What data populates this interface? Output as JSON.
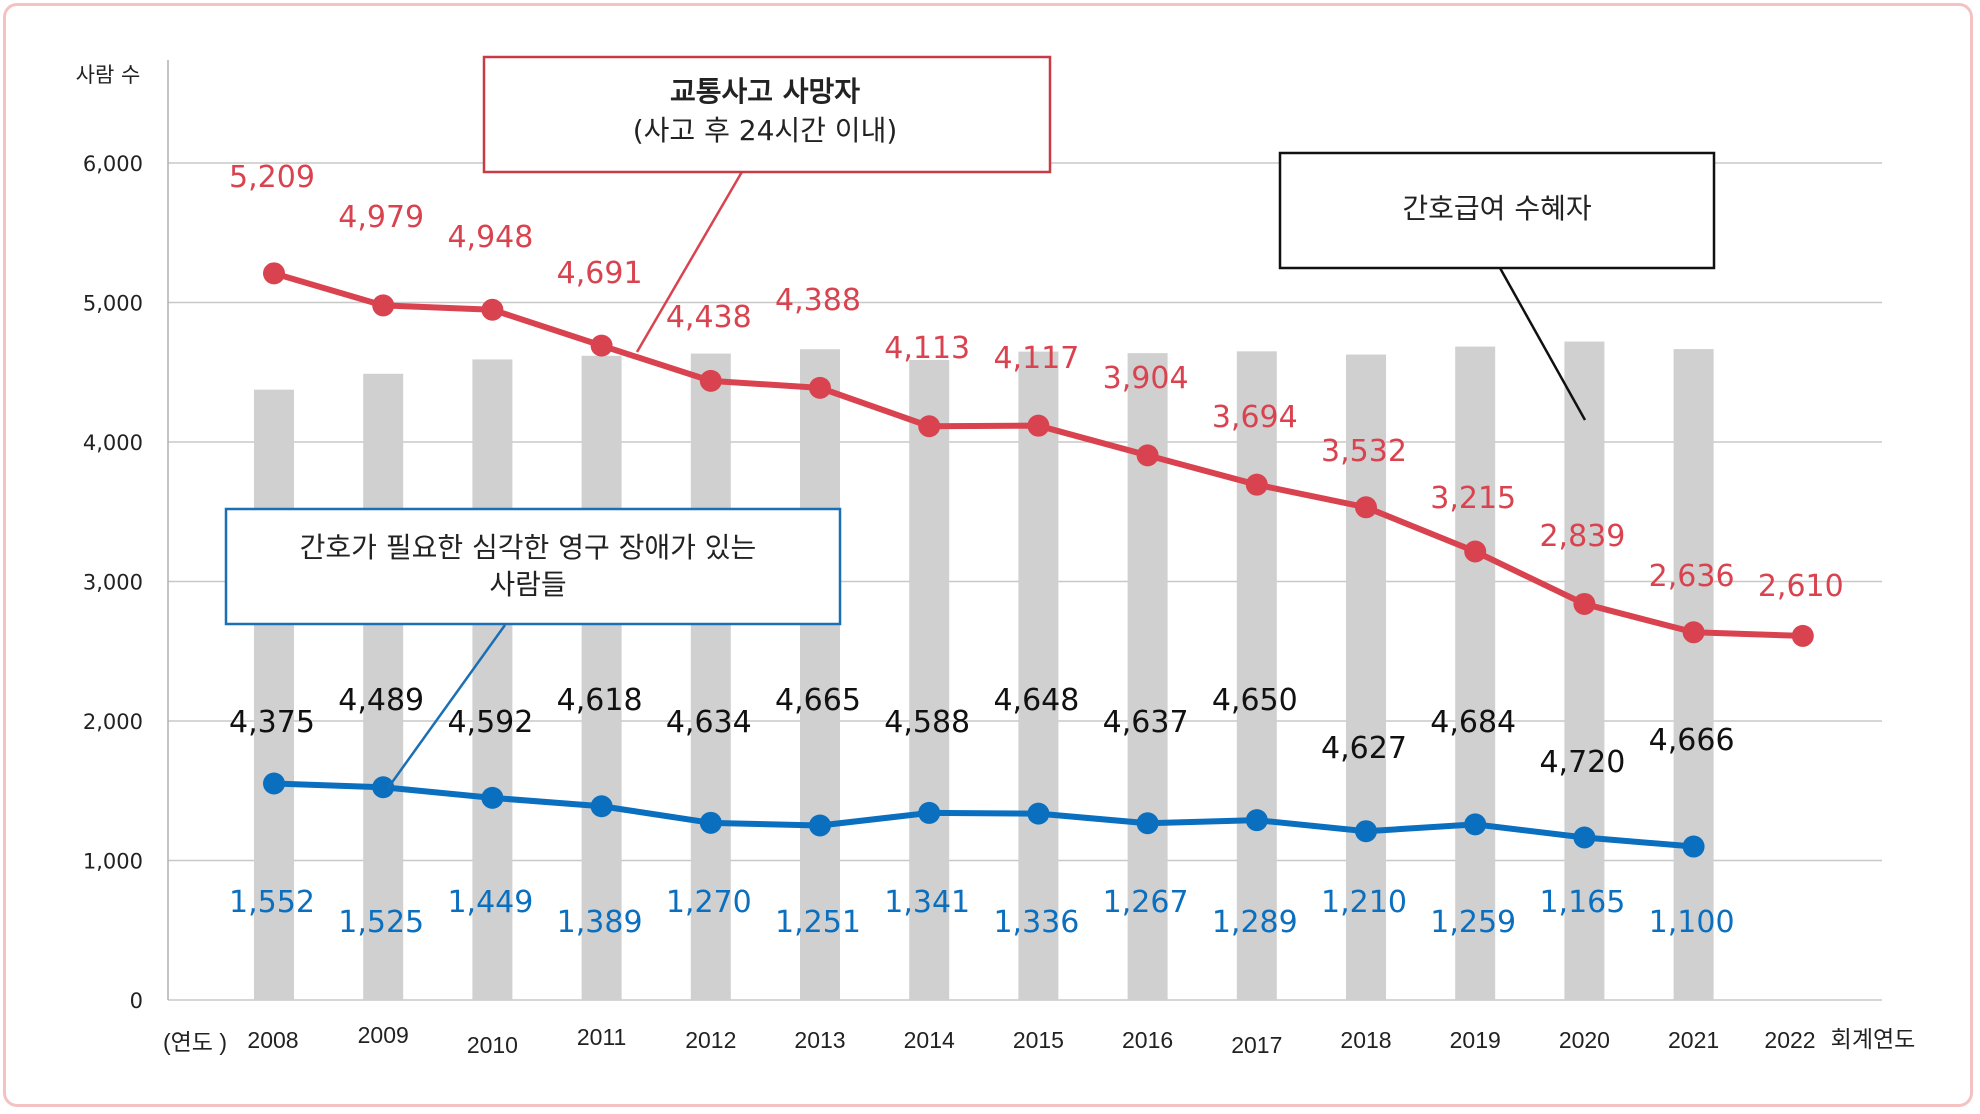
{
  "chart_data": {
    "type": "bar",
    "ylabel": "사람 수",
    "xlabel_prefix": "(연도 )",
    "xlabel_suffix": "회계연도",
    "ylim": [
      0,
      6000
    ],
    "yticks": [
      "0",
      "1,000",
      "2,000",
      "3,000",
      "4,000",
      "5,000",
      "6,000"
    ],
    "categories": [
      "2008",
      "2009",
      "2010",
      "2011",
      "2012",
      "2013",
      "2014",
      "2015",
      "2016",
      "2017",
      "2018",
      "2019",
      "2020",
      "2021",
      "2022"
    ],
    "series": [
      {
        "name": "간호급여 수혜자",
        "kind": "bar",
        "color": "#d0d0d0",
        "label_color": "#111111",
        "values": [
          4375,
          4489,
          4592,
          4618,
          4634,
          4665,
          4588,
          4648,
          4637,
          4650,
          4627,
          4684,
          4720,
          4666,
          null
        ],
        "labels": [
          "4,375",
          "4,489",
          "4,592",
          "4,618",
          "4,634",
          "4,665",
          "4,588",
          "4,648",
          "4,637",
          "4,650",
          "4,627",
          "4,684",
          "4,720",
          "4,666",
          ""
        ]
      },
      {
        "name": "교통사고 사망자",
        "kind": "line",
        "color": "#d9434f",
        "label_color": "#d9434f",
        "values": [
          5209,
          4979,
          4948,
          4691,
          4438,
          4388,
          4113,
          4117,
          3904,
          3694,
          3532,
          3215,
          2839,
          2636,
          2610
        ],
        "labels": [
          "5,209",
          "4,979",
          "4,948",
          "4,691",
          "4,438",
          "4,388",
          "4,113",
          "4,117",
          "3,904",
          "3,694",
          "3,532",
          "3,215",
          "2,839",
          "2,636",
          "2,610"
        ]
      },
      {
        "name": "간호가 필요한 심각한 영구 장애가 있는 사람들",
        "kind": "line",
        "color": "#0a6fbf",
        "label_color": "#0a6fbf",
        "values": [
          1552,
          1525,
          1449,
          1389,
          1270,
          1251,
          1341,
          1336,
          1267,
          1289,
          1210,
          1259,
          1165,
          1100,
          null
        ],
        "labels": [
          "1,552",
          "1,525",
          "1,449",
          "1,389",
          "1,270",
          "1,251",
          "1,341",
          "1,336",
          "1,267",
          "1,289",
          "1,210",
          "1,259",
          "1,165",
          "1,100",
          ""
        ]
      }
    ],
    "annotations": {
      "red_box": {
        "title": "교통사고 사망자",
        "subtitle": "(사고 후 24시간 이내)",
        "border": "#c83a44"
      },
      "black_box": {
        "text": "간호급여 수혜자",
        "border": "#111111"
      },
      "blue_box": {
        "line1": "간호가 필요한 심각한 영구 장애가 있는",
        "line2": "사람들",
        "border": "#1a6fb5"
      }
    },
    "grid": true
  }
}
